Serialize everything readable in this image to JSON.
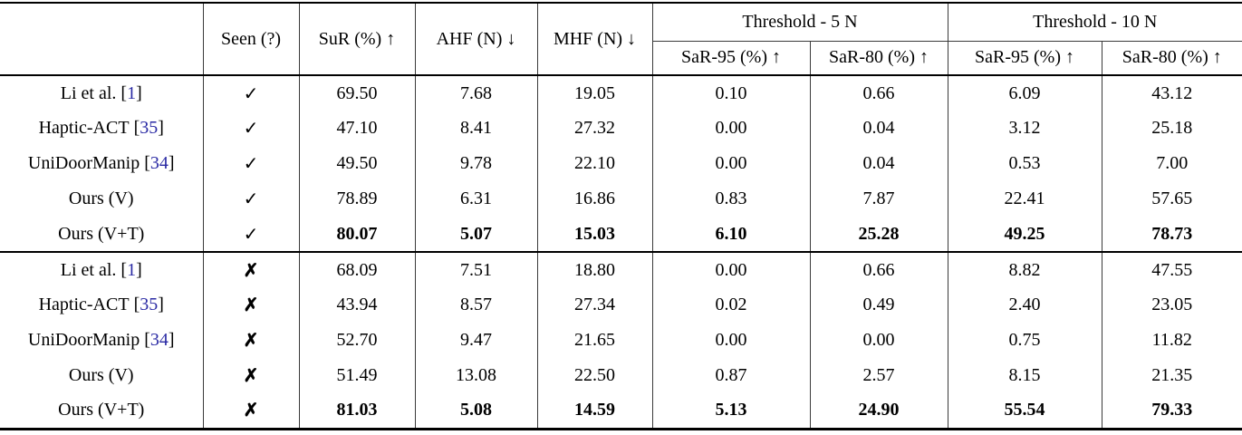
{
  "table": {
    "headers": {
      "seen": "Seen (?)",
      "sur": "SuR (%) ↑",
      "ahf": "AHF (N) ↓",
      "mhf": "MHF (N) ↓",
      "group_5n": "Threshold - 5 N",
      "group_10n": "Threshold - 10 N",
      "sar95": "SaR-95 (%) ↑",
      "sar80": "SaR-80 (%) ↑"
    },
    "value_columns": [
      "SuR (%)",
      "AHF (N)",
      "MHF (N)",
      "SaR-95 (%) @5N",
      "SaR-80 (%) @5N",
      "SaR-95 (%) @10N",
      "SaR-80 (%) @10N"
    ],
    "cite_open": "[",
    "cite_close": "]",
    "citation_color": "#2a2aa4",
    "check_mark": "✓",
    "cross_mark": "✗",
    "sections": [
      {
        "name": "seen",
        "seen_mark": "✓",
        "rows": [
          {
            "method": "Li et al.",
            "cite": "1",
            "bold": false,
            "values": [
              "69.50",
              "7.68",
              "19.05",
              "0.10",
              "0.66",
              "6.09",
              "43.12"
            ]
          },
          {
            "method": "Haptic-ACT",
            "cite": "35",
            "bold": false,
            "values": [
              "47.10",
              "8.41",
              "27.32",
              "0.00",
              "0.04",
              "3.12",
              "25.18"
            ]
          },
          {
            "method": "UniDoorManip",
            "cite": "34",
            "bold": false,
            "values": [
              "49.50",
              "9.78",
              "22.10",
              "0.00",
              "0.04",
              "0.53",
              "7.00"
            ]
          },
          {
            "method": "Ours (V)",
            "cite": null,
            "bold": false,
            "values": [
              "78.89",
              "6.31",
              "16.86",
              "0.83",
              "7.87",
              "22.41",
              "57.65"
            ]
          },
          {
            "method": "Ours (V+T)",
            "cite": null,
            "bold": true,
            "values": [
              "80.07",
              "5.07",
              "15.03",
              "6.10",
              "25.28",
              "49.25",
              "78.73"
            ]
          }
        ]
      },
      {
        "name": "unseen",
        "seen_mark": "✗",
        "rows": [
          {
            "method": "Li et al.",
            "cite": "1",
            "bold": false,
            "values": [
              "68.09",
              "7.51",
              "18.80",
              "0.00",
              "0.66",
              "8.82",
              "47.55"
            ]
          },
          {
            "method": "Haptic-ACT",
            "cite": "35",
            "bold": false,
            "values": [
              "43.94",
              "8.57",
              "27.34",
              "0.02",
              "0.49",
              "2.40",
              "23.05"
            ]
          },
          {
            "method": "UniDoorManip",
            "cite": "34",
            "bold": false,
            "values": [
              "52.70",
              "9.47",
              "21.65",
              "0.00",
              "0.00",
              "0.75",
              "11.82"
            ]
          },
          {
            "method": "Ours (V)",
            "cite": null,
            "bold": false,
            "values": [
              "51.49",
              "13.08",
              "22.50",
              "0.87",
              "2.57",
              "8.15",
              "21.35"
            ]
          },
          {
            "method": "Ours (V+T)",
            "cite": null,
            "bold": true,
            "values": [
              "81.03",
              "5.08",
              "14.59",
              "5.13",
              "24.90",
              "55.54",
              "79.33"
            ]
          }
        ]
      }
    ]
  }
}
